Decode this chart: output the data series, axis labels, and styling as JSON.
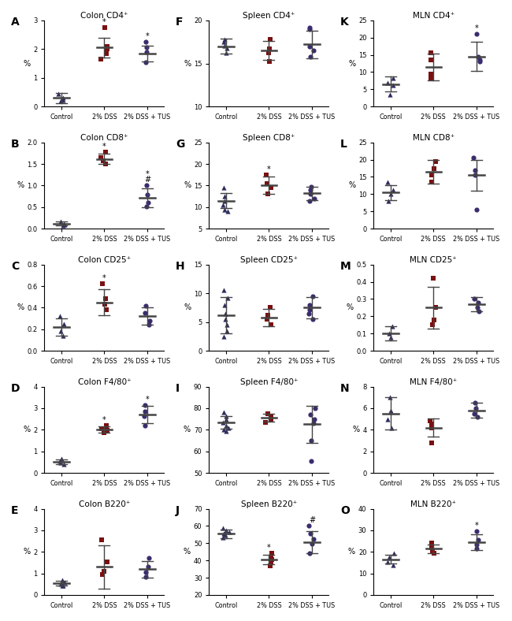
{
  "panels": [
    {
      "label": "A",
      "title": "Colon CD4⁺",
      "row": 0,
      "col": 0,
      "ylim": [
        0,
        3
      ],
      "yticks": [
        0,
        1,
        2,
        3
      ],
      "groups": [
        {
          "name": "Control",
          "mean": 0.3,
          "sd": 0.18,
          "points": [
            0.45,
            0.32,
            0.2,
            0.22
          ],
          "marker": "^",
          "color": "#2d2d5e"
        },
        {
          "name": "2% DSS",
          "mean": 2.05,
          "sd": 0.35,
          "points": [
            2.75,
            2.1,
            2.0,
            1.85,
            1.65
          ],
          "marker": "s",
          "color": "#7a1010"
        },
        {
          "name": "2% DSS + TUS",
          "mean": 1.85,
          "sd": 0.28,
          "points": [
            2.25,
            2.05,
            1.9,
            1.55
          ],
          "marker": "o",
          "color": "#3b2c6e"
        }
      ],
      "sig": {
        "2% DSS": "*",
        "2% DSS + TUS": "*"
      }
    },
    {
      "label": "B",
      "title": "Colon CD8⁺",
      "row": 1,
      "col": 0,
      "ylim": [
        0,
        2.0
      ],
      "yticks": [
        0.0,
        0.5,
        1.0,
        1.5,
        2.0
      ],
      "groups": [
        {
          "name": "Control",
          "mean": 0.12,
          "sd": 0.04,
          "points": [
            0.17,
            0.12,
            0.1,
            0.08
          ],
          "marker": "^",
          "color": "#2d2d5e"
        },
        {
          "name": "2% DSS",
          "mean": 1.62,
          "sd": 0.12,
          "points": [
            1.78,
            1.65,
            1.58,
            1.5
          ],
          "marker": "s",
          "color": "#7a1010"
        },
        {
          "name": "2% DSS + TUS",
          "mean": 0.72,
          "sd": 0.22,
          "points": [
            1.0,
            0.78,
            0.6,
            0.52
          ],
          "marker": "o",
          "color": "#3b2c6e"
        }
      ],
      "sig": {
        "2% DSS": "*",
        "2% DSS + TUS": "#\n*"
      }
    },
    {
      "label": "C",
      "title": "Colon CD25⁺",
      "row": 2,
      "col": 0,
      "ylim": [
        0,
        0.8
      ],
      "yticks": [
        0.0,
        0.2,
        0.4,
        0.6,
        0.8
      ],
      "groups": [
        {
          "name": "Control",
          "mean": 0.22,
          "sd": 0.08,
          "points": [
            0.32,
            0.25,
            0.18,
            0.14
          ],
          "marker": "^",
          "color": "#2d2d5e"
        },
        {
          "name": "2% DSS",
          "mean": 0.45,
          "sd": 0.12,
          "points": [
            0.62,
            0.48,
            0.43,
            0.38
          ],
          "marker": "s",
          "color": "#7a1010"
        },
        {
          "name": "2% DSS + TUS",
          "mean": 0.32,
          "sd": 0.08,
          "points": [
            0.42,
            0.35,
            0.28,
            0.24
          ],
          "marker": "o",
          "color": "#3b2c6e"
        }
      ],
      "sig": {
        "2% DSS": "*"
      }
    },
    {
      "label": "D",
      "title": "Colon F4/80⁺",
      "row": 3,
      "col": 0,
      "ylim": [
        0,
        4
      ],
      "yticks": [
        0,
        1,
        2,
        3,
        4
      ],
      "groups": [
        {
          "name": "Control",
          "mean": 0.52,
          "sd": 0.12,
          "points": [
            0.65,
            0.55,
            0.48,
            0.42
          ],
          "marker": "^",
          "color": "#2d2d5e"
        },
        {
          "name": "2% DSS",
          "mean": 2.0,
          "sd": 0.15,
          "points": [
            2.18,
            2.05,
            1.98,
            1.85
          ],
          "marker": "s",
          "color": "#7a1010"
        },
        {
          "name": "2% DSS + TUS",
          "mean": 2.7,
          "sd": 0.4,
          "points": [
            3.15,
            2.85,
            2.65,
            2.2
          ],
          "marker": "o",
          "color": "#3b2c6e"
        }
      ],
      "sig": {
        "2% DSS": "*",
        "2% DSS + TUS": "*"
      }
    },
    {
      "label": "E",
      "title": "Colon B220⁺",
      "row": 4,
      "col": 0,
      "ylim": [
        0,
        4
      ],
      "yticks": [
        0,
        1,
        2,
        3,
        4
      ],
      "groups": [
        {
          "name": "Control",
          "mean": 0.55,
          "sd": 0.1,
          "points": [
            0.68,
            0.58,
            0.5,
            0.45,
            0.42
          ],
          "marker": "^",
          "color": "#2d2d5e"
        },
        {
          "name": "2% DSS",
          "mean": 1.3,
          "sd": 1.0,
          "points": [
            2.55,
            1.55,
            1.1,
            0.95
          ],
          "marker": "s",
          "color": "#7a1010"
        },
        {
          "name": "2% DSS + TUS",
          "mean": 1.2,
          "sd": 0.38,
          "points": [
            1.72,
            1.32,
            1.05,
            0.85
          ],
          "marker": "o",
          "color": "#3b2c6e"
        }
      ],
      "sig": {}
    },
    {
      "label": "F",
      "title": "Spleen CD4⁺",
      "row": 0,
      "col": 1,
      "ylim": [
        10,
        20
      ],
      "yticks": [
        10,
        15,
        20
      ],
      "groups": [
        {
          "name": "Control",
          "mean": 17.0,
          "sd": 0.9,
          "points": [
            17.8,
            17.5,
            17.1,
            16.8,
            16.2
          ],
          "marker": "^",
          "color": "#2d2d5e"
        },
        {
          "name": "2% DSS",
          "mean": 16.5,
          "sd": 1.1,
          "points": [
            17.8,
            16.7,
            16.2,
            15.2
          ],
          "marker": "s",
          "color": "#7a1010"
        },
        {
          "name": "2% DSS + TUS",
          "mean": 17.2,
          "sd": 1.6,
          "points": [
            19.2,
            19.0,
            17.0,
            16.5,
            15.8
          ],
          "marker": "o",
          "color": "#3b2c6e"
        }
      ],
      "sig": {}
    },
    {
      "label": "G",
      "title": "Spleen CD8⁺",
      "row": 1,
      "col": 1,
      "ylim": [
        5,
        25
      ],
      "yticks": [
        5,
        10,
        15,
        20,
        25
      ],
      "groups": [
        {
          "name": "Control",
          "mean": 11.5,
          "sd": 1.8,
          "points": [
            14.5,
            12.5,
            11.5,
            10.5,
            9.5,
            9.0
          ],
          "marker": "^",
          "color": "#2d2d5e"
        },
        {
          "name": "2% DSS",
          "mean": 15.0,
          "sd": 2.0,
          "points": [
            17.5,
            15.5,
            14.5,
            13.0
          ],
          "marker": "s",
          "color": "#7a1010"
        },
        {
          "name": "2% DSS + TUS",
          "mean": 13.2,
          "sd": 1.5,
          "points": [
            14.8,
            14.0,
            13.0,
            12.0,
            11.5
          ],
          "marker": "o",
          "color": "#3b2c6e"
        }
      ],
      "sig": {
        "2% DSS": "*"
      }
    },
    {
      "label": "H",
      "title": "Spleen CD25⁺",
      "row": 2,
      "col": 1,
      "ylim": [
        0,
        15
      ],
      "yticks": [
        0,
        5,
        10,
        15
      ],
      "groups": [
        {
          "name": "Control",
          "mean": 6.2,
          "sd": 3.2,
          "points": [
            10.5,
            9.2,
            8.0,
            6.5,
            5.5,
            4.5,
            3.5,
            2.5
          ],
          "marker": "^",
          "color": "#2d2d5e"
        },
        {
          "name": "2% DSS",
          "mean": 5.8,
          "sd": 1.5,
          "points": [
            7.5,
            6.2,
            5.5,
            4.5
          ],
          "marker": "s",
          "color": "#7a1010"
        },
        {
          "name": "2% DSS + TUS",
          "mean": 7.5,
          "sd": 1.8,
          "points": [
            9.5,
            8.0,
            7.2,
            6.5,
            5.5
          ],
          "marker": "o",
          "color": "#3b2c6e"
        }
      ],
      "sig": {}
    },
    {
      "label": "I",
      "title": "Spleen F4/80⁺",
      "row": 3,
      "col": 1,
      "ylim": [
        50,
        90
      ],
      "yticks": [
        50,
        60,
        70,
        80,
        90
      ],
      "groups": [
        {
          "name": "Control",
          "mean": 73.5,
          "sd": 3.0,
          "points": [
            78.0,
            76.5,
            75.0,
            73.5,
            72.0,
            71.0,
            70.0,
            69.5
          ],
          "marker": "^",
          "color": "#2d2d5e"
        },
        {
          "name": "2% DSS",
          "mean": 75.5,
          "sd": 1.8,
          "points": [
            77.5,
            76.5,
            75.0,
            73.5
          ],
          "marker": "s",
          "color": "#7a1010"
        },
        {
          "name": "2% DSS + TUS",
          "mean": 72.5,
          "sd": 8.5,
          "points": [
            80.0,
            77.0,
            75.0,
            73.0,
            65.0,
            55.5
          ],
          "marker": "o",
          "color": "#3b2c6e"
        }
      ],
      "sig": {}
    },
    {
      "label": "J",
      "title": "Spleen B220⁺",
      "row": 4,
      "col": 1,
      "ylim": [
        20,
        70
      ],
      "yticks": [
        20,
        30,
        40,
        50,
        60,
        70
      ],
      "groups": [
        {
          "name": "Control",
          "mean": 55.5,
          "sd": 2.5,
          "points": [
            59.0,
            57.5,
            56.5,
            55.5,
            54.5,
            53.5
          ],
          "marker": "^",
          "color": "#2d2d5e"
        },
        {
          "name": "2% DSS",
          "mean": 40.5,
          "sd": 2.8,
          "points": [
            44.0,
            42.0,
            40.5,
            38.5,
            37.0
          ],
          "marker": "s",
          "color": "#7a1010"
        },
        {
          "name": "2% DSS + TUS",
          "mean": 50.5,
          "sd": 6.5,
          "points": [
            60.0,
            55.5,
            52.5,
            49.5,
            44.0
          ],
          "marker": "o",
          "color": "#3b2c6e"
        }
      ],
      "sig": {
        "2% DSS": "*",
        "2% DSS + TUS": "#"
      }
    },
    {
      "label": "K",
      "title": "MLN CD4⁺",
      "row": 0,
      "col": 2,
      "ylim": [
        0,
        25
      ],
      "yticks": [
        0,
        5,
        10,
        15,
        20,
        25
      ],
      "groups": [
        {
          "name": "Control",
          "mean": 6.5,
          "sd": 2.2,
          "points": [
            8.2,
            6.8,
            6.2,
            3.5
          ],
          "marker": "^",
          "color": "#2d2d5e"
        },
        {
          "name": "2% DSS",
          "mean": 11.5,
          "sd": 3.8,
          "points": [
            15.5,
            13.5,
            9.5,
            8.0
          ],
          "marker": "s",
          "color": "#7a1010"
        },
        {
          "name": "2% DSS + TUS",
          "mean": 14.5,
          "sd": 4.2,
          "points": [
            21.0,
            14.5,
            13.5,
            13.0
          ],
          "marker": "o",
          "color": "#3b2c6e"
        }
      ],
      "sig": {
        "2% DSS + TUS": "*"
      }
    },
    {
      "label": "L",
      "title": "MLN CD8⁺",
      "row": 1,
      "col": 2,
      "ylim": [
        0,
        25
      ],
      "yticks": [
        0,
        5,
        10,
        15,
        20,
        25
      ],
      "groups": [
        {
          "name": "Control",
          "mean": 10.5,
          "sd": 2.2,
          "points": [
            13.5,
            11.2,
            10.2,
            8.0
          ],
          "marker": "^",
          "color": "#2d2d5e"
        },
        {
          "name": "2% DSS",
          "mean": 16.5,
          "sd": 3.5,
          "points": [
            19.5,
            17.5,
            15.5,
            13.5
          ],
          "marker": "s",
          "color": "#7a1010"
        },
        {
          "name": "2% DSS + TUS",
          "mean": 15.5,
          "sd": 4.5,
          "points": [
            20.5,
            17.0,
            15.5,
            5.5
          ],
          "marker": "o",
          "color": "#3b2c6e"
        }
      ],
      "sig": {}
    },
    {
      "label": "M",
      "title": "MLN CD25⁺",
      "row": 2,
      "col": 2,
      "ylim": [
        0.0,
        0.5
      ],
      "yticks": [
        0.0,
        0.1,
        0.2,
        0.3,
        0.4,
        0.5
      ],
      "groups": [
        {
          "name": "Control",
          "mean": 0.1,
          "sd": 0.04,
          "points": [
            0.14,
            0.1,
            0.08
          ],
          "marker": "^",
          "color": "#2d2d5e"
        },
        {
          "name": "2% DSS",
          "mean": 0.25,
          "sd": 0.12,
          "points": [
            0.42,
            0.25,
            0.18,
            0.15
          ],
          "marker": "s",
          "color": "#7a1010"
        },
        {
          "name": "2% DSS + TUS",
          "mean": 0.27,
          "sd": 0.04,
          "points": [
            0.3,
            0.28,
            0.25,
            0.23
          ],
          "marker": "o",
          "color": "#3b2c6e"
        }
      ],
      "sig": {}
    },
    {
      "label": "N",
      "title": "MLN F4/80⁺",
      "row": 3,
      "col": 2,
      "ylim": [
        0,
        8
      ],
      "yticks": [
        0,
        2,
        4,
        6,
        8
      ],
      "groups": [
        {
          "name": "Control",
          "mean": 5.5,
          "sd": 1.5,
          "points": [
            7.0,
            5.8,
            5.0,
            4.2
          ],
          "marker": "^",
          "color": "#2d2d5e"
        },
        {
          "name": "2% DSS",
          "mean": 4.2,
          "sd": 0.85,
          "points": [
            4.8,
            4.5,
            4.2,
            2.8
          ],
          "marker": "s",
          "color": "#7a1010"
        },
        {
          "name": "2% DSS + TUS",
          "mean": 5.8,
          "sd": 0.7,
          "points": [
            6.5,
            6.0,
            5.5,
            5.2
          ],
          "marker": "o",
          "color": "#3b2c6e"
        }
      ],
      "sig": {}
    },
    {
      "label": "O",
      "title": "MLN B220⁺",
      "row": 4,
      "col": 2,
      "ylim": [
        0,
        40
      ],
      "yticks": [
        0,
        10,
        20,
        30,
        40
      ],
      "groups": [
        {
          "name": "Control",
          "mean": 16.5,
          "sd": 2.0,
          "points": [
            19.5,
            17.5,
            15.5,
            14.0
          ],
          "marker": "^",
          "color": "#2d2d5e"
        },
        {
          "name": "2% DSS",
          "mean": 21.5,
          "sd": 2.0,
          "points": [
            24.0,
            22.0,
            20.5,
            19.5
          ],
          "marker": "s",
          "color": "#7a1010"
        },
        {
          "name": "2% DSS + TUS",
          "mean": 24.5,
          "sd": 3.5,
          "points": [
            29.5,
            25.5,
            23.5,
            21.5
          ],
          "marker": "o",
          "color": "#3b2c6e"
        }
      ],
      "sig": {
        "2% DSS + TUS": "*"
      }
    }
  ],
  "group_names": [
    "Control",
    "2% DSS",
    "2% DSS + TUS"
  ],
  "ylabel": "%",
  "background_color": "#ffffff",
  "mean_bar_color": "#444444",
  "errorbar_color": "#444444"
}
